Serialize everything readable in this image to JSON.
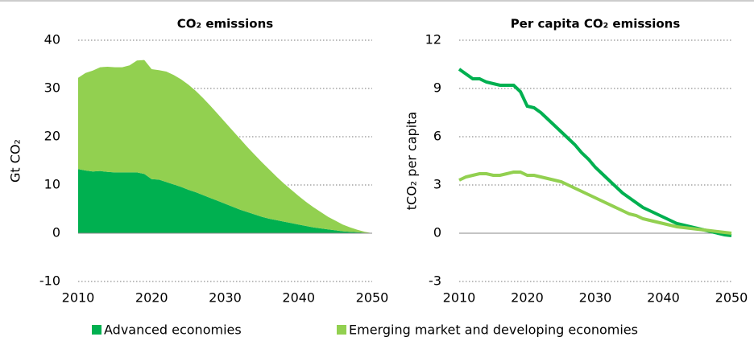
{
  "chart_data": [
    {
      "type": "area",
      "stacked": true,
      "title": "CO₂ emissions",
      "ylabel": "Gt CO₂",
      "x": [
        2010,
        2011,
        2012,
        2013,
        2014,
        2015,
        2016,
        2017,
        2018,
        2019,
        2020,
        2021,
        2022,
        2023,
        2024,
        2025,
        2026,
        2027,
        2028,
        2029,
        2030,
        2031,
        2032,
        2033,
        2034,
        2035,
        2036,
        2037,
        2038,
        2039,
        2040,
        2041,
        2042,
        2043,
        2044,
        2045,
        2046,
        2047,
        2048,
        2049,
        2050
      ],
      "xlim": [
        2010,
        2050
      ],
      "xticks": [
        2010,
        2020,
        2030,
        2040,
        2050
      ],
      "ylim": [
        -10,
        40
      ],
      "yticks": [
        -10,
        0,
        10,
        20,
        30,
        40
      ],
      "grid": true,
      "legend": "bottom",
      "series": [
        {
          "name": "Advanced economies",
          "color": "#00b050",
          "values": [
            13.3,
            13.0,
            12.8,
            12.9,
            12.7,
            12.6,
            12.6,
            12.6,
            12.6,
            12.3,
            11.2,
            11.1,
            10.6,
            10.1,
            9.6,
            9.0,
            8.5,
            7.9,
            7.3,
            6.7,
            6.1,
            5.5,
            4.9,
            4.4,
            3.9,
            3.4,
            3.0,
            2.7,
            2.4,
            2.1,
            1.8,
            1.5,
            1.2,
            1.0,
            0.8,
            0.6,
            0.4,
            0.3,
            0.2,
            0.1,
            0
          ]
        },
        {
          "name": "Emerging market and developing economies",
          "color": "#92d050",
          "values": [
            18.9,
            20.2,
            20.9,
            21.5,
            21.8,
            21.8,
            21.8,
            22.2,
            23.2,
            23.6,
            22.8,
            22.7,
            22.9,
            22.7,
            22.3,
            21.8,
            21.0,
            20.1,
            19.1,
            18.0,
            16.9,
            15.8,
            14.7,
            13.5,
            12.4,
            11.3,
            10.2,
            9.0,
            7.9,
            6.9,
            5.9,
            5.0,
            4.2,
            3.4,
            2.6,
            2.0,
            1.4,
            0.9,
            0.5,
            0.2,
            0
          ]
        }
      ]
    },
    {
      "type": "line",
      "title": "Per capita CO₂ emissions",
      "ylabel": "tCO₂ per capita",
      "x": [
        2010,
        2011,
        2012,
        2013,
        2014,
        2015,
        2016,
        2017,
        2018,
        2019,
        2020,
        2021,
        2022,
        2023,
        2024,
        2025,
        2026,
        2027,
        2028,
        2029,
        2030,
        2031,
        2032,
        2033,
        2034,
        2035,
        2036,
        2037,
        2038,
        2039,
        2040,
        2041,
        2042,
        2043,
        2044,
        2045,
        2046,
        2047,
        2048,
        2049,
        2050
      ],
      "xlim": [
        2010,
        2050
      ],
      "xticks": [
        2010,
        2020,
        2030,
        2040,
        2050
      ],
      "ylim": [
        -3,
        12
      ],
      "yticks": [
        -3,
        0,
        3,
        6,
        9,
        12
      ],
      "grid": true,
      "series": [
        {
          "color": "#00b050",
          "values": [
            10.2,
            9.9,
            9.6,
            9.6,
            9.4,
            9.3,
            9.2,
            9.2,
            9.2,
            8.8,
            7.9,
            7.8,
            7.5,
            7.1,
            6.7,
            6.3,
            5.9,
            5.5,
            5.0,
            4.6,
            4.1,
            3.7,
            3.3,
            2.9,
            2.5,
            2.2,
            1.9,
            1.6,
            1.4,
            1.2,
            1.0,
            0.8,
            0.6,
            0.5,
            0.4,
            0.3,
            0.2,
            0.1,
            0,
            -0.1,
            -0.15
          ]
        },
        {
          "color": "#92d050",
          "values": [
            3.3,
            3.5,
            3.6,
            3.7,
            3.7,
            3.6,
            3.6,
            3.7,
            3.8,
            3.8,
            3.6,
            3.6,
            3.5,
            3.4,
            3.3,
            3.2,
            3.0,
            2.8,
            2.6,
            2.4,
            2.2,
            2.0,
            1.8,
            1.6,
            1.4,
            1.2,
            1.1,
            0.9,
            0.8,
            0.7,
            0.6,
            0.5,
            0.4,
            0.35,
            0.3,
            0.25,
            0.2,
            0.15,
            0.1,
            0.05,
            0
          ]
        }
      ]
    }
  ]
}
